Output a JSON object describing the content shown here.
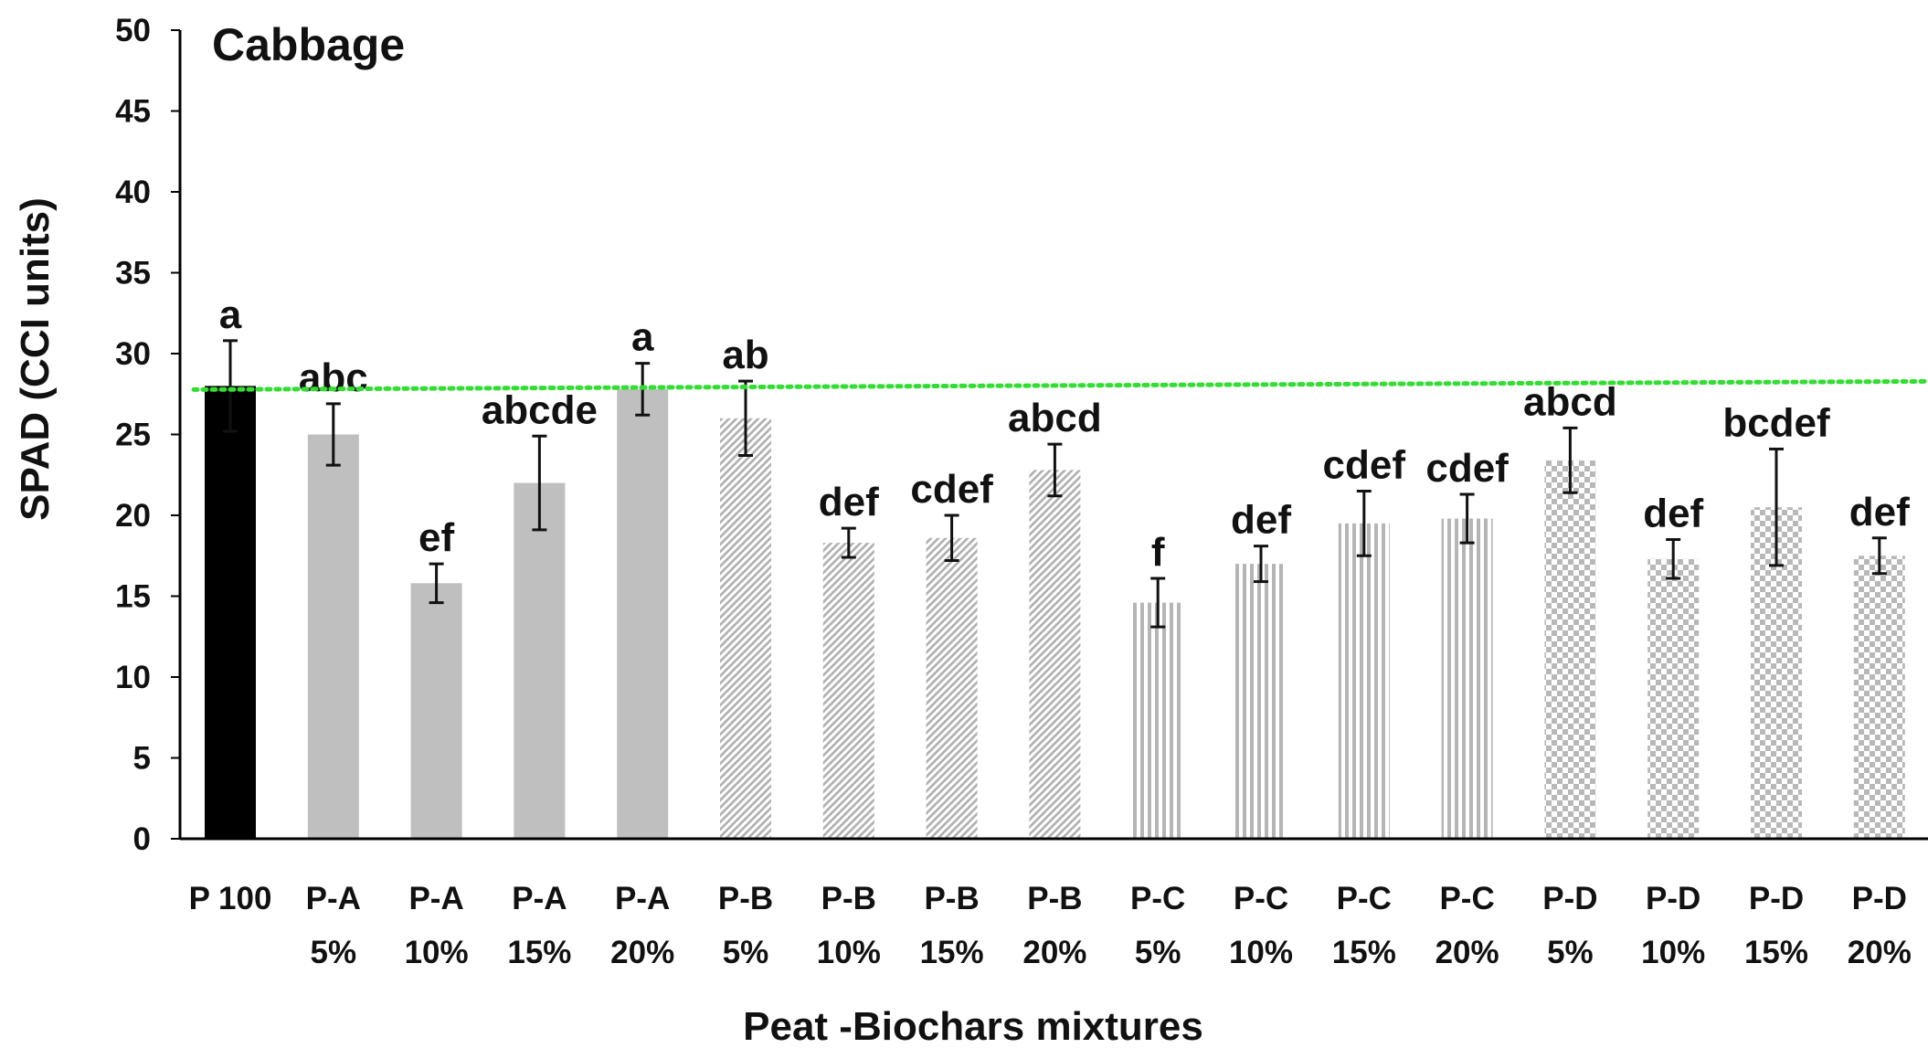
{
  "chart_data": {
    "type": "bar",
    "title": "Cabbage",
    "xlabel": "Peat -Biochars mixtures",
    "ylabel": "SPAD (CCI units)",
    "ylim": [
      0,
      50
    ],
    "yticks": [
      0,
      5,
      10,
      15,
      20,
      25,
      30,
      35,
      40,
      45,
      50
    ],
    "grid": false,
    "categories": [
      [
        "P 100",
        ""
      ],
      [
        "P-A",
        "5%"
      ],
      [
        "P-A",
        "10%"
      ],
      [
        "P-A",
        "15%"
      ],
      [
        "P-A",
        "20%"
      ],
      [
        "P-B",
        "5%"
      ],
      [
        "P-B",
        "10%"
      ],
      [
        "P-B",
        "15%"
      ],
      [
        "P-B",
        "20%"
      ],
      [
        "P-C",
        "5%"
      ],
      [
        "P-C",
        "10%"
      ],
      [
        "P-C",
        "15%"
      ],
      [
        "P-C",
        "20%"
      ],
      [
        "P-D",
        "5%"
      ],
      [
        "P-D",
        "10%"
      ],
      [
        "P-D",
        "15%"
      ],
      [
        "P-D",
        "20%"
      ]
    ],
    "values": [
      28.0,
      25.0,
      15.8,
      22.0,
      27.8,
      26.0,
      18.3,
      18.6,
      22.8,
      14.6,
      17.0,
      19.5,
      19.8,
      23.4,
      17.3,
      20.5,
      17.5
    ],
    "errors": [
      2.8,
      1.9,
      1.2,
      2.9,
      1.6,
      2.3,
      0.9,
      1.4,
      1.6,
      1.5,
      1.1,
      2.0,
      1.5,
      2.0,
      1.2,
      3.6,
      1.1
    ],
    "significance_letters": [
      "a",
      "abc",
      "ef",
      "abcde",
      "a",
      "ab",
      "def",
      "cdef",
      "abcd",
      "f",
      "def",
      "cdef",
      "cdef",
      "abcd",
      "def",
      "bcdef",
      "def"
    ],
    "fills": [
      "solid-black",
      "solid-gray",
      "solid-gray",
      "solid-gray",
      "solid-gray",
      "diagonal-hatch",
      "diagonal-hatch",
      "diagonal-hatch",
      "diagonal-hatch",
      "vertical-stripes",
      "vertical-stripes",
      "vertical-stripes",
      "vertical-stripes",
      "checkerboard",
      "checkerboard",
      "checkerboard",
      "checkerboard"
    ],
    "reference_line": {
      "value": 28.0,
      "style": "dotted",
      "color": "#33dd33"
    },
    "colors": {
      "black": "#000000",
      "gray": "#bfbfbf",
      "pattern": "#b5b5b5",
      "axis": "#000000"
    }
  }
}
